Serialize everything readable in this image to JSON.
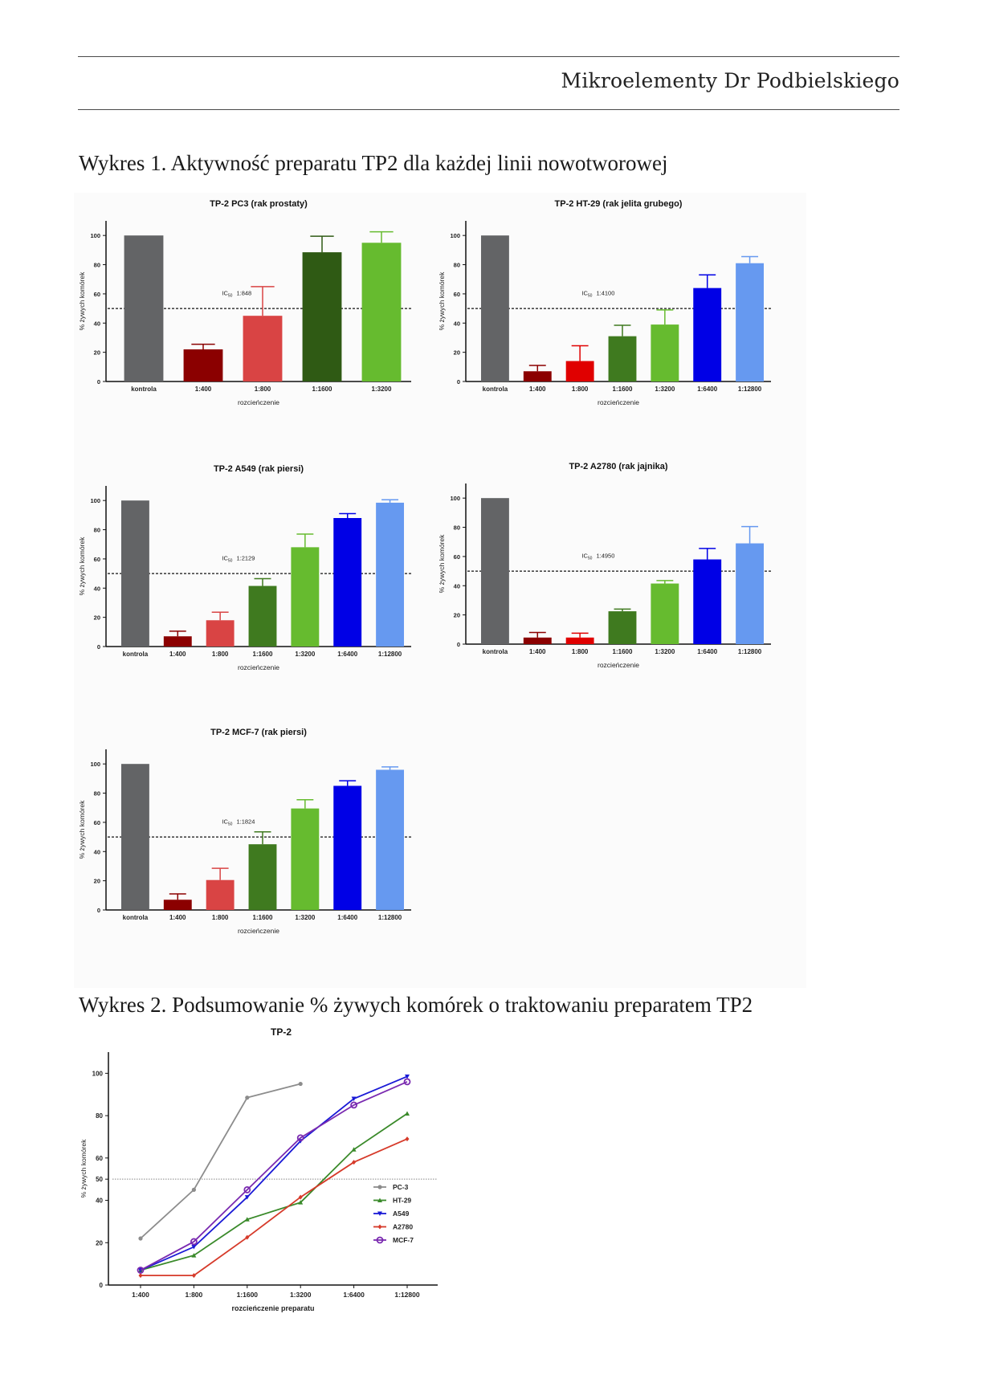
{
  "header": {
    "title": "Mikroelementy Dr Podbielskiego"
  },
  "captions": {
    "figure1": "Wykres 1. Aktywność preparatu TP2  dla każdej linii nowotworowej",
    "figure2": "Wykres 2. Podsumowanie % żywych komórek o traktowaniu preparatem TP2"
  },
  "chart_data": [
    {
      "type": "bar",
      "title": "TP-2 PC3 (rak prostaty)",
      "xlabel": "rozcieńczenie",
      "ylabel": "% żywych komórek",
      "ylim": [
        0,
        110
      ],
      "yticks": [
        0,
        20,
        40,
        60,
        80,
        100
      ],
      "reference_line": 50,
      "annotation": {
        "label": "IC",
        "sub": "50",
        "value": "1:848"
      },
      "categories": [
        "kontrola",
        "1:400",
        "1:800",
        "1:1600",
        "1:3200"
      ],
      "values": [
        100,
        22,
        45,
        88.5,
        95
      ],
      "errors": [
        0,
        3.5,
        20,
        11,
        7.5
      ],
      "colors": [
        "#636466",
        "#8b0000",
        "#d94444",
        "#2f5a14",
        "#66bb2f"
      ]
    },
    {
      "type": "bar",
      "title": "TP-2 HT-29 (rak jelita grubego)",
      "xlabel": "rozcieńczenie",
      "ylabel": "% żywych komórek",
      "ylim": [
        0,
        110
      ],
      "yticks": [
        0,
        20,
        40,
        60,
        80,
        100
      ],
      "reference_line": 50,
      "annotation": {
        "label": "IC",
        "sub": "50",
        "value": "1:4100"
      },
      "categories": [
        "kontrola",
        "1:400",
        "1:800",
        "1:1600",
        "1:3200",
        "1:6400",
        "1:12800"
      ],
      "values": [
        100,
        7,
        14,
        31,
        39,
        64,
        81
      ],
      "errors": [
        0,
        4,
        10.5,
        7.5,
        10,
        9,
        4.5
      ],
      "colors": [
        "#636466",
        "#8b0000",
        "#e00000",
        "#3f7a1f",
        "#66bb2f",
        "#0000e6",
        "#6699f0"
      ]
    },
    {
      "type": "bar",
      "title": "TP-2 A549 (rak piersi)",
      "xlabel": "rozcieńczenie",
      "ylabel": "% żywych komórek",
      "ylim": [
        0,
        110
      ],
      "yticks": [
        0,
        20,
        40,
        60,
        80,
        100
      ],
      "reference_line": 50,
      "annotation": {
        "label": "IC",
        "sub": "50",
        "value": "1:2129"
      },
      "categories": [
        "kontrola",
        "1:400",
        "1:800",
        "1:1600",
        "1:3200",
        "1:6400",
        "1:12800"
      ],
      "values": [
        100,
        7,
        18,
        41.5,
        68,
        88,
        98.5
      ],
      "errors": [
        0,
        3.5,
        5.5,
        5,
        9,
        3,
        2
      ],
      "colors": [
        "#636466",
        "#8b0000",
        "#d94444",
        "#3f7a1f",
        "#66bb2f",
        "#0000e6",
        "#6699f0"
      ]
    },
    {
      "type": "bar",
      "title": "TP-2 A2780 (rak jajnika)",
      "xlabel": "rozcieńczenie",
      "ylabel": "% żywych komórek",
      "ylim": [
        0,
        110
      ],
      "yticks": [
        0,
        20,
        40,
        60,
        80,
        100
      ],
      "reference_line": 50,
      "annotation": {
        "label": "IC",
        "sub": "50",
        "value": "1:4950"
      },
      "categories": [
        "kontrola",
        "1:400",
        "1:800",
        "1:1600",
        "1:3200",
        "1:6400",
        "1:12800"
      ],
      "values": [
        100,
        4.5,
        4.5,
        22.5,
        41.5,
        58,
        69
      ],
      "errors": [
        0,
        3.5,
        3,
        1.5,
        2,
        7.5,
        11.5
      ],
      "colors": [
        "#636466",
        "#8b0000",
        "#e00000",
        "#3f7a1f",
        "#66bb2f",
        "#0000e6",
        "#6699f0"
      ]
    },
    {
      "type": "bar",
      "title": "TP-2 MCF-7 (rak piersi)",
      "xlabel": "rozcieńczenie",
      "ylabel": "% żywych komórek",
      "ylim": [
        0,
        110
      ],
      "yticks": [
        0,
        20,
        40,
        60,
        80,
        100
      ],
      "reference_line": 50,
      "annotation": {
        "label": "IC",
        "sub": "50",
        "value": "1:1824"
      },
      "categories": [
        "kontrola",
        "1:400",
        "1:800",
        "1:1600",
        "1:3200",
        "1:6400",
        "1:12800"
      ],
      "values": [
        100,
        7,
        20.5,
        45,
        69.5,
        85,
        96
      ],
      "errors": [
        0,
        4,
        8,
        8.5,
        6,
        3.5,
        2
      ],
      "colors": [
        "#636466",
        "#8b0000",
        "#d94444",
        "#3f7a1f",
        "#66bb2f",
        "#0000e6",
        "#6699f0"
      ]
    },
    {
      "type": "line",
      "title": "TP-2",
      "xlabel": "rozcieńczenie preparatu",
      "ylabel": "% żywych komórek",
      "ylim": [
        0,
        110
      ],
      "yticks": [
        0,
        20,
        40,
        50,
        60,
        80,
        100
      ],
      "reference_line": 50,
      "legend_position": "right",
      "categories": [
        "1:400",
        "1:800",
        "1:1600",
        "1:3200",
        "1:6400",
        "1:12800"
      ],
      "series": [
        {
          "name": "PC-3",
          "color": "#8c8c8c",
          "marker": "circle",
          "values": [
            22,
            45,
            88.5,
            95,
            null,
            null
          ]
        },
        {
          "name": "HT-29",
          "color": "#3a8a2a",
          "marker": "triangle",
          "values": [
            7,
            14,
            31,
            39,
            64,
            81
          ]
        },
        {
          "name": "A549",
          "color": "#1a1ad6",
          "marker": "triangle-down",
          "values": [
            7,
            18,
            41.5,
            68,
            88,
            98.5
          ]
        },
        {
          "name": "A2780",
          "color": "#d63a2a",
          "marker": "diamond",
          "values": [
            4.5,
            4.5,
            22.5,
            41.5,
            58,
            69
          ]
        },
        {
          "name": "MCF-7",
          "color": "#7a2ab0",
          "marker": "open-circle",
          "values": [
            7,
            20.5,
            45,
            69.5,
            85,
            96
          ]
        }
      ]
    }
  ]
}
